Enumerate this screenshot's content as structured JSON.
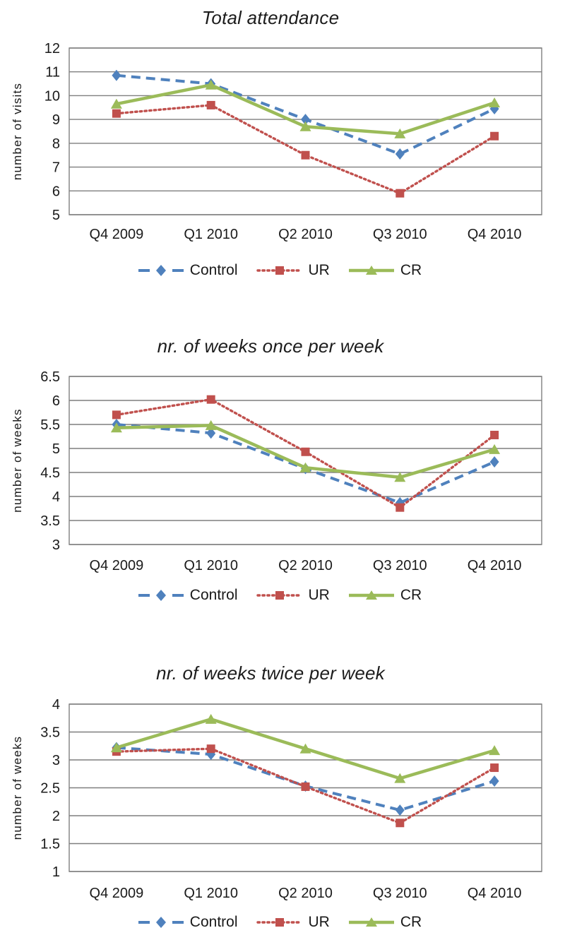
{
  "page": {
    "background": "#ffffff"
  },
  "colors": {
    "control": "#4F81BD",
    "ur": "#C0504D",
    "cr": "#9BBB59",
    "grid": "#7F7F7F",
    "text": "#1A1A1A"
  },
  "chart_data": [
    {
      "type": "line",
      "title": "Total attendance",
      "ylabel": "number of visits",
      "xlabel": "",
      "categories": [
        "Q4 2009",
        "Q1 2010",
        "Q2 2010",
        "Q3 2010",
        "Q4 2010"
      ],
      "ylim": [
        5,
        12
      ],
      "ytick_step": 1,
      "grid": true,
      "legend_position": "bottom",
      "series": [
        {
          "name": "Control",
          "color": "#4F81BD",
          "line_style": "dashed",
          "marker": "diamond",
          "values": [
            10.85,
            10.5,
            9.0,
            7.55,
            9.45
          ]
        },
        {
          "name": "UR",
          "color": "#C0504D",
          "line_style": "dotted",
          "marker": "square",
          "values": [
            9.25,
            9.6,
            7.5,
            5.9,
            8.3
          ]
        },
        {
          "name": "CR",
          "color": "#9BBB59",
          "line_style": "solid",
          "marker": "triangle",
          "values": [
            9.65,
            10.45,
            8.7,
            8.4,
            9.7
          ]
        }
      ]
    },
    {
      "type": "line",
      "title": "nr. of weeks once per week",
      "ylabel": "number of weeks",
      "xlabel": "",
      "categories": [
        "Q4 2009",
        "Q1 2010",
        "Q2 2010",
        "Q3 2010",
        "Q4 2010"
      ],
      "ylim": [
        3,
        6.5
      ],
      "ytick_step": 0.5,
      "grid": true,
      "legend_position": "bottom",
      "series": [
        {
          "name": "Control",
          "color": "#4F81BD",
          "line_style": "dashed",
          "marker": "diamond",
          "values": [
            5.5,
            5.32,
            4.58,
            3.87,
            4.72
          ]
        },
        {
          "name": "UR",
          "color": "#C0504D",
          "line_style": "dotted",
          "marker": "square",
          "values": [
            5.7,
            6.02,
            4.93,
            3.77,
            5.28
          ]
        },
        {
          "name": "CR",
          "color": "#9BBB59",
          "line_style": "solid",
          "marker": "triangle",
          "values": [
            5.43,
            5.48,
            4.6,
            4.4,
            4.98
          ]
        }
      ]
    },
    {
      "type": "line",
      "title": "nr. of weeks twice per week",
      "ylabel": "number of weeks",
      "xlabel": "",
      "categories": [
        "Q4 2009",
        "Q1 2010",
        "Q2 2010",
        "Q3 2010",
        "Q4 2010"
      ],
      "ylim": [
        1,
        4
      ],
      "ytick_step": 0.5,
      "grid": true,
      "legend_position": "bottom",
      "series": [
        {
          "name": "Control",
          "color": "#4F81BD",
          "line_style": "dashed",
          "marker": "diamond",
          "values": [
            3.22,
            3.1,
            2.53,
            2.1,
            2.62
          ]
        },
        {
          "name": "UR",
          "color": "#C0504D",
          "line_style": "dotted",
          "marker": "square",
          "values": [
            3.15,
            3.2,
            2.52,
            1.87,
            2.86
          ]
        },
        {
          "name": "CR",
          "color": "#9BBB59",
          "line_style": "solid",
          "marker": "triangle",
          "values": [
            3.22,
            3.73,
            3.2,
            2.67,
            3.17
          ]
        }
      ]
    }
  ]
}
